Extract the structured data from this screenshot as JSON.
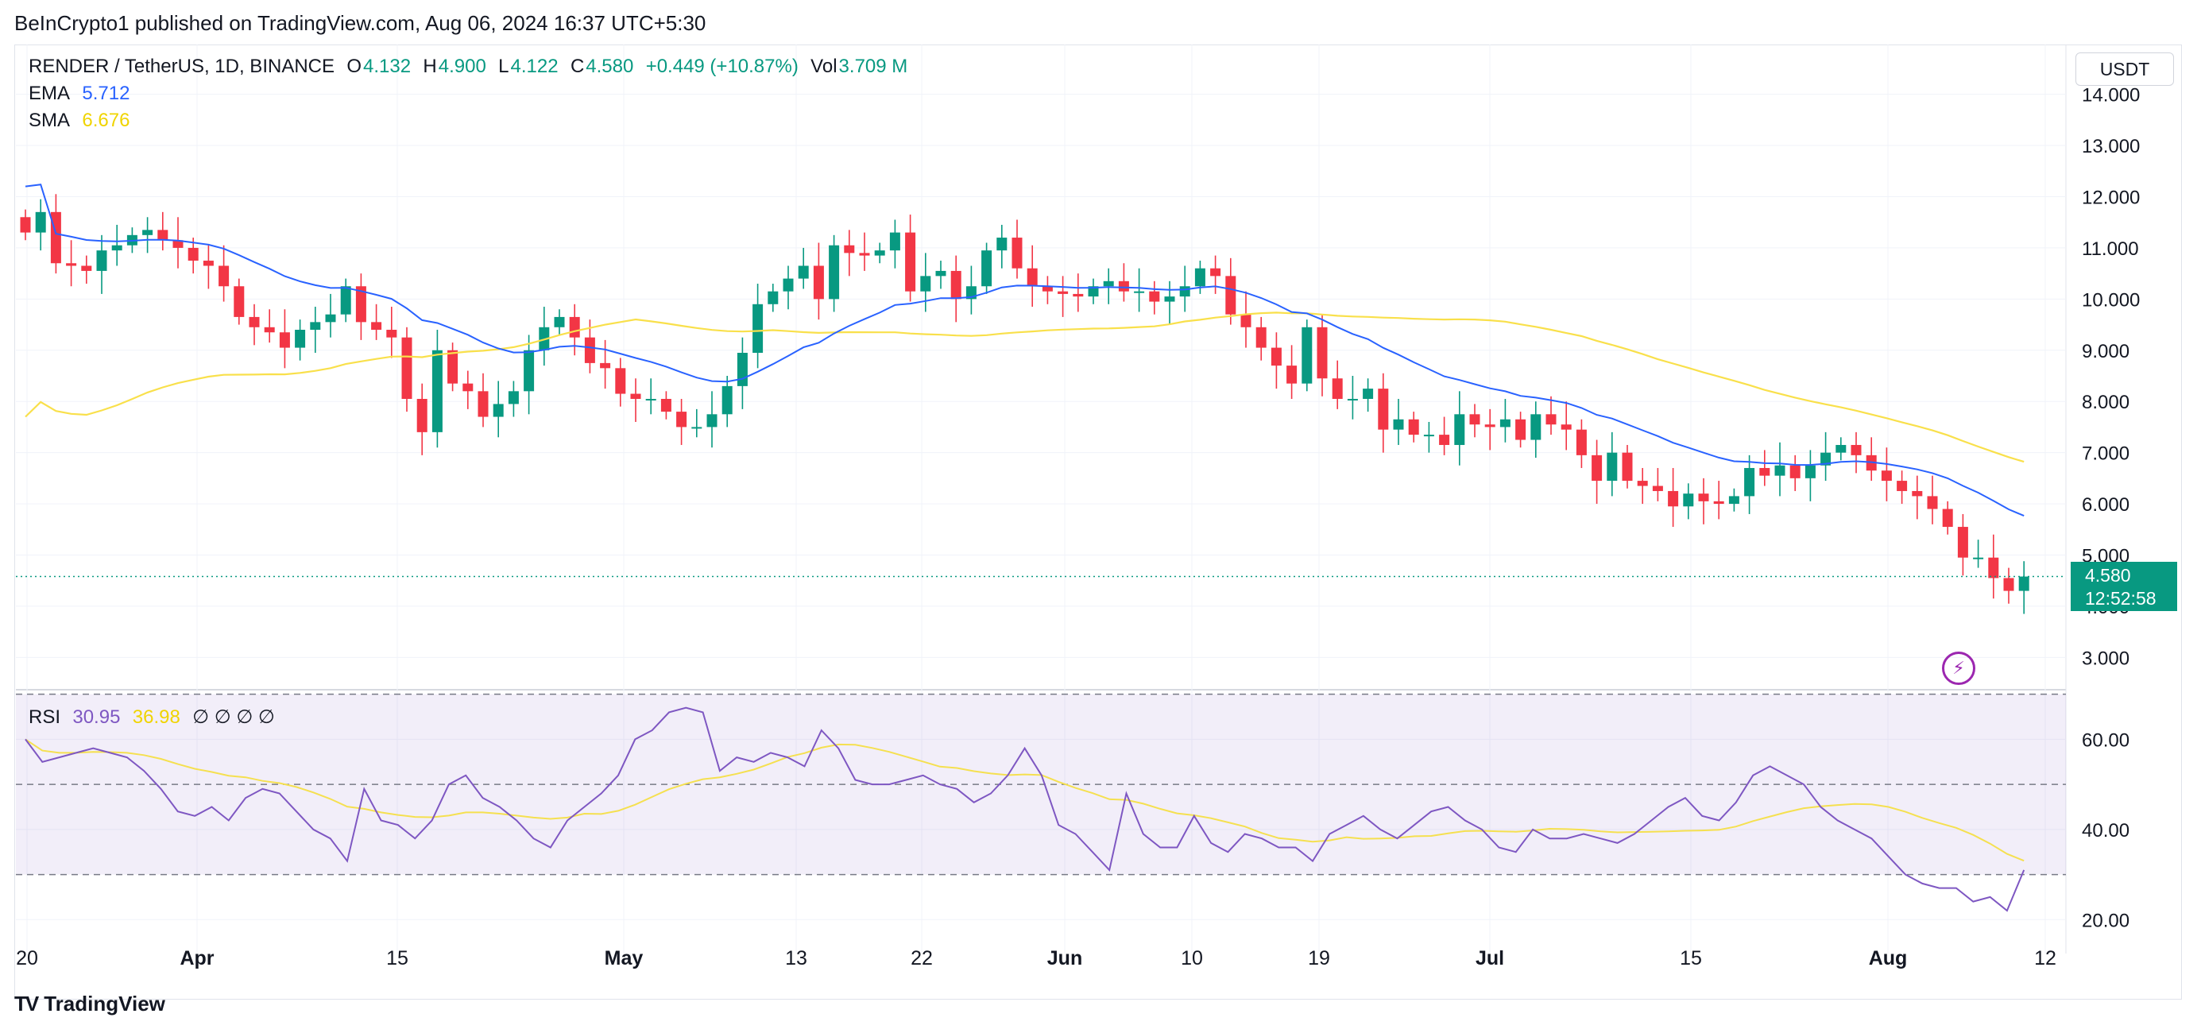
{
  "header": {
    "published": "BeInCrypto1 published on TradingView.com, Aug 06, 2024 16:37 UTC+5:30"
  },
  "legend": {
    "symbol": "RENDER / TetherUS, 1D, BINANCE",
    "o_label": "O",
    "o_value": "4.132",
    "h_label": "H",
    "h_value": "4.900",
    "l_label": "L",
    "l_value": "4.122",
    "c_label": "C",
    "c_value": "4.580",
    "change": "+0.449 (+10.87%)",
    "vol_label": "Vol",
    "vol_value": "3.709 M",
    "ema_label": "EMA",
    "ema_value": "5.712",
    "sma_label": "SMA",
    "sma_value": "6.676",
    "rsi_label": "RSI",
    "rsi_value": "30.95",
    "rsi_ma_value": "36.98",
    "rsi_extra": "∅ ∅ ∅ ∅"
  },
  "currency_button": "USDT",
  "price_tag": {
    "price": "4.580",
    "countdown": "12:52:58"
  },
  "footer": {
    "brand": "TradingView",
    "logo": "TV"
  },
  "colors": {
    "up": "#089981",
    "down": "#f23645",
    "ema": "#2962ff",
    "sma": "#ffeb3b",
    "rsi": "#7e57c2",
    "rsi_ma": "#f5e050"
  },
  "chart_data": [
    {
      "type": "candlestick",
      "title": "RENDER / TetherUS, 1D, BINANCE",
      "ylim": [
        2.4,
        14.6
      ],
      "y_ticks": [
        "3.000",
        "4.000",
        "5.000",
        "6.000",
        "7.000",
        "8.000",
        "9.000",
        "10.000",
        "11.000",
        "12.000",
        "13.000",
        "14.000"
      ],
      "x_ticks": [
        "20",
        "Apr",
        "15",
        "May",
        "13",
        "22",
        "Jun",
        "10",
        "19",
        "Jul",
        "15",
        "Aug",
        "12"
      ],
      "current_price": 4.58,
      "closes": [
        11.3,
        11.7,
        10.7,
        10.65,
        10.55,
        10.95,
        11.05,
        11.25,
        11.35,
        11.15,
        11.0,
        10.75,
        10.65,
        10.25,
        9.65,
        9.45,
        9.35,
        9.05,
        9.4,
        9.55,
        9.7,
        10.25,
        9.55,
        9.4,
        9.25,
        8.05,
        7.4,
        9.0,
        8.35,
        8.2,
        7.7,
        7.95,
        8.2,
        9.0,
        9.45,
        9.65,
        9.25,
        8.75,
        8.65,
        8.15,
        8.05,
        8.05,
        7.8,
        7.5,
        7.5,
        7.75,
        8.3,
        8.95,
        9.9,
        10.15,
        10.4,
        10.65,
        10.0,
        11.05,
        10.9,
        10.85,
        10.95,
        11.3,
        10.15,
        10.45,
        10.55,
        10.0,
        10.25,
        10.95,
        11.2,
        10.6,
        10.25,
        10.15,
        10.1,
        10.05,
        10.25,
        10.35,
        10.15,
        10.15,
        9.95,
        10.05,
        10.25,
        10.6,
        10.45,
        9.7,
        9.45,
        9.05,
        8.7,
        8.35,
        9.45,
        8.45,
        8.05,
        8.05,
        8.25,
        7.45,
        7.65,
        7.35,
        7.35,
        7.15,
        7.75,
        7.55,
        7.5,
        7.65,
        7.25,
        7.75,
        7.55,
        7.45,
        6.95,
        6.45,
        7.0,
        6.45,
        6.35,
        6.25,
        5.95,
        6.2,
        6.05,
        6.0,
        6.15,
        6.7,
        6.55,
        6.75,
        6.5,
        6.75,
        7.0,
        7.15,
        6.95,
        6.65,
        6.45,
        6.25,
        6.15,
        5.9,
        5.55,
        4.95,
        4.95,
        4.55,
        4.3,
        4.58
      ],
      "ema": {
        "name": "EMA",
        "last": 5.712
      },
      "sma": {
        "name": "SMA",
        "last": 6.676
      }
    },
    {
      "type": "line",
      "title": "RSI",
      "ylim": [
        16,
        71
      ],
      "y_ticks": [
        "20.00",
        "40.00",
        "60.00"
      ],
      "bands": [
        30,
        50,
        70
      ],
      "series": [
        {
          "name": "RSI",
          "values": [
            60,
            55,
            56,
            57,
            58,
            57,
            56,
            53,
            49,
            44,
            43,
            45,
            42,
            47,
            49,
            48,
            44,
            40,
            38,
            33,
            49,
            42,
            41,
            38,
            42,
            50,
            52,
            47,
            45,
            42,
            38,
            36,
            42,
            45,
            48,
            52,
            60,
            62,
            66,
            67,
            66,
            53,
            56,
            55,
            57,
            56,
            54,
            62,
            58,
            51,
            50,
            50,
            51,
            52,
            50,
            49,
            46,
            48,
            52,
            58,
            52,
            41,
            39,
            35,
            31,
            48,
            39,
            36,
            36,
            43,
            37,
            35,
            39,
            38,
            36,
            36,
            33,
            39,
            41,
            43,
            40,
            38,
            41,
            44,
            45,
            42,
            40,
            36,
            35,
            40,
            38,
            38,
            39,
            38,
            37,
            39,
            42,
            45,
            47,
            43,
            42,
            46,
            52,
            54,
            52,
            50,
            45,
            42,
            40,
            38,
            34,
            30,
            28,
            27,
            27,
            24,
            25,
            22,
            31
          ],
          "last": 30.95
        },
        {
          "name": "RSI-based MA",
          "last": 36.98
        }
      ]
    }
  ]
}
